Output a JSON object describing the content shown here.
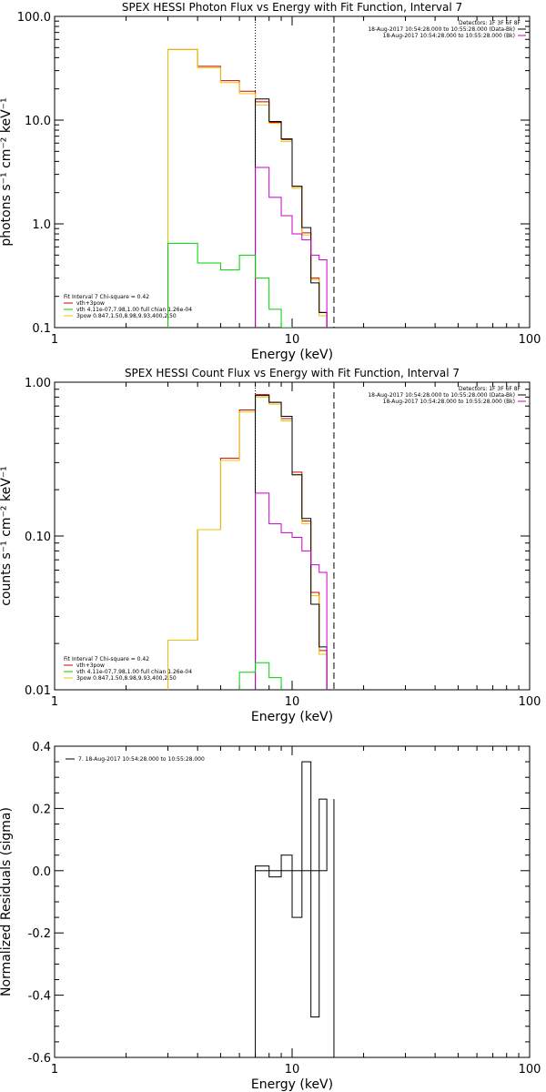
{
  "colors": {
    "data": "#000000",
    "total_fit": "#d40000",
    "vth": "#00d000",
    "3pow": "#e8c800",
    "bkgd": "#c800c8"
  },
  "chart_data": [
    {
      "type": "line",
      "title": "SPEX HESSI Photon Flux vs Energy with Fit Function, Interval 7",
      "xlabel": "Energy (keV)",
      "ylabel": "photons s⁻¹ cm⁻² keV⁻¹",
      "xscale": "log",
      "yscale": "log",
      "xlim": [
        1,
        100
      ],
      "ylim": [
        0.1,
        100
      ],
      "xticks": [
        "1",
        "10",
        "100"
      ],
      "yticks": [
        "0.1",
        "1.0",
        "10.0",
        "100.0"
      ],
      "vlines": [
        {
          "x": 7,
          "style": "dotted"
        },
        {
          "x": 15,
          "style": "dashed"
        }
      ],
      "legend_top_right": [
        "Detectors: 1F 3F 6F 8F",
        "18-Aug-2017 10:54:28.000 to 10:55:28.000 (Data-Bk)",
        "18-Aug-2017 10:54:28.000 to 10:55:28.000 (Bk)"
      ],
      "legend_bottom_left": [
        "Fit Interval 7   Chi-square = 0.42",
        "vth+3pow",
        "vth 4.11e-07,7.98,1.00  full chian 1.26e-04",
        "3pow 0.847,1.50,8.98,9.93,400,2.50"
      ],
      "bin_edges": [
        3.0,
        4.0,
        5.0,
        6.0,
        7.0,
        8.0,
        9.0,
        10.0,
        11.0,
        12.0,
        13.0,
        14.0,
        15.0
      ],
      "series": [
        {
          "key": "total_fit",
          "values": [
            48,
            33,
            24,
            19,
            15,
            9.5,
            6.5,
            2.3,
            0.82,
            0.3,
            0.14
          ]
        },
        {
          "key": "3pow",
          "values": [
            48,
            32,
            23,
            18,
            14,
            9.3,
            6.2,
            2.2,
            0.78,
            0.29,
            0.13
          ]
        },
        {
          "key": "data",
          "values": [
            null,
            null,
            null,
            null,
            16,
            9.7,
            6.6,
            2.3,
            0.92,
            0.27,
            0.14
          ]
        },
        {
          "key": "bkgd",
          "values": [
            null,
            null,
            null,
            null,
            3.5,
            1.8,
            1.2,
            0.8,
            0.7,
            0.5,
            0.45
          ]
        },
        {
          "key": "vth",
          "values": [
            0.65,
            0.42,
            0.36,
            0.5,
            0.3,
            0.15,
            0.1,
            null,
            null,
            null,
            null
          ]
        }
      ]
    },
    {
      "type": "line",
      "title": "SPEX HESSI Count Flux vs Energy with Fit Function, Interval 7",
      "xlabel": "Energy (keV)",
      "ylabel": "counts s⁻¹ cm⁻² keV⁻¹",
      "xscale": "log",
      "yscale": "log",
      "xlim": [
        1,
        100
      ],
      "ylim": [
        0.01,
        1.0
      ],
      "xticks": [
        "1",
        "10",
        "100"
      ],
      "yticks": [
        "0.01",
        "0.10",
        "1.00"
      ],
      "vlines": [
        {
          "x": 7,
          "style": "dotted"
        },
        {
          "x": 15,
          "style": "dashed"
        }
      ],
      "legend_top_right": [
        "Detectors: 1F 3F 6F 8F",
        "18-Aug-2017 10:54:28.000 to 10:55:28.000 (Data-Bk)",
        "18-Aug-2017 10:54:28.000 to 10:55:28.000 (Bk)"
      ],
      "legend_bottom_left": [
        "Fit Interval 7   Chi-square = 0.42",
        "vth+3pow",
        "vth 4.11e-07,7.98,1.00  full chian 1.26e-04",
        "3pow 0.847,1.50,8.98,9.93,400,2.50"
      ],
      "bin_edges": [
        3.0,
        4.0,
        5.0,
        6.0,
        7.0,
        8.0,
        9.0,
        10.0,
        11.0,
        12.0,
        13.0,
        14.0,
        15.0
      ],
      "series": [
        {
          "key": "total_fit",
          "values": [
            0.021,
            0.11,
            0.32,
            0.66,
            0.83,
            0.74,
            0.58,
            0.26,
            0.125,
            0.043,
            0.018
          ]
        },
        {
          "key": "3pow",
          "values": [
            0.021,
            0.11,
            0.31,
            0.64,
            0.8,
            0.72,
            0.56,
            0.25,
            0.12,
            0.041,
            0.017
          ]
        },
        {
          "key": "data",
          "values": [
            null,
            null,
            null,
            null,
            0.82,
            0.74,
            0.6,
            0.25,
            0.13,
            0.036,
            0.019
          ]
        },
        {
          "key": "bkgd",
          "values": [
            null,
            null,
            null,
            null,
            0.19,
            0.12,
            0.105,
            0.098,
            0.08,
            0.065,
            0.058
          ]
        },
        {
          "key": "vth",
          "values": [
            null,
            null,
            null,
            0.013,
            0.015,
            0.012,
            null,
            null,
            null,
            null,
            null
          ]
        }
      ]
    },
    {
      "type": "line",
      "title": "",
      "xlabel": "Energy (keV)",
      "ylabel": "Normalized Residuals (sigma)",
      "xscale": "log",
      "yscale": "linear",
      "xlim": [
        1,
        100
      ],
      "ylim": [
        -0.6,
        0.4
      ],
      "xticks": [
        "1",
        "10",
        "100"
      ],
      "yticks": [
        "-0.6",
        "-0.4",
        "-0.2",
        "0.0",
        "0.2",
        "0.4"
      ],
      "legend_top_left": [
        "7. 18-Aug-2017 10:54:28.000 to 10:55:28.000"
      ],
      "bin_edges": [
        7.0,
        8.0,
        9.0,
        10.0,
        11.0,
        12.0,
        13.0,
        14.0,
        15.0
      ],
      "series": [
        {
          "key": "data",
          "values": [
            0.015,
            -0.02,
            0.05,
            -0.15,
            0.35,
            -0.47,
            0.23
          ]
        }
      ]
    }
  ]
}
